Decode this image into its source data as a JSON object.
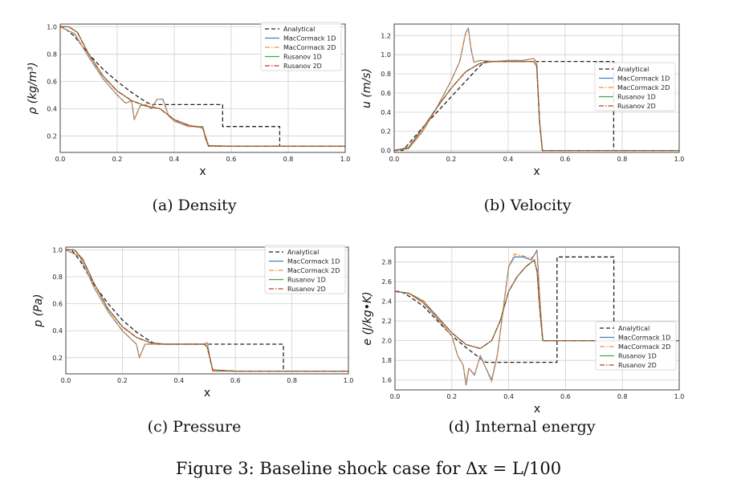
{
  "figure_caption": "Figure 3: Baseline shock case for Δx = L/100",
  "legend_labels": [
    "Analytical",
    "MacCormack 1D",
    "MacCormack 2D",
    "Rusanov 1D",
    "Rusanov 2D"
  ],
  "colors": {
    "analytical": "#222222",
    "maccormack_1d": "#4e7fbf",
    "maccormack_2d": "#f0913a",
    "rusanov_1d": "#4ca24c",
    "rusanov_2d": "#c0392b"
  },
  "chart_data": [
    {
      "type": "line",
      "caption": "(a) Density",
      "xlabel": "x",
      "ylabel": "ρ (kg/m³)",
      "xlim": [
        0,
        1
      ],
      "ylim": [
        0.08,
        1.02
      ],
      "xticks": [
        "0.0",
        "0.2",
        "0.4",
        "0.6",
        "0.8",
        "1.0"
      ],
      "yticks": [
        "0.2",
        "0.4",
        "0.6",
        "0.8",
        "1.0"
      ],
      "grid": true,
      "legend_position": "upper-right",
      "series": [
        {
          "name": "Analytical",
          "x": [
            0,
            0.01,
            0.05,
            0.1,
            0.15,
            0.2,
            0.25,
            0.3,
            0.32,
            0.57,
            0.57,
            0.77,
            0.77,
            1.0
          ],
          "y": [
            1.0,
            1.0,
            0.93,
            0.8,
            0.69,
            0.6,
            0.52,
            0.45,
            0.43,
            0.43,
            0.27,
            0.27,
            0.125,
            0.125
          ]
        },
        {
          "name": "MacCormack 1D",
          "x": [
            0,
            0.05,
            0.1,
            0.15,
            0.2,
            0.23,
            0.25,
            0.26,
            0.28,
            0.3,
            0.32,
            0.34,
            0.36,
            0.38,
            0.4,
            0.45,
            0.5,
            0.51,
            0.52,
            0.6,
            1.0
          ],
          "y": [
            1.0,
            0.95,
            0.78,
            0.62,
            0.5,
            0.44,
            0.46,
            0.32,
            0.42,
            0.43,
            0.4,
            0.47,
            0.47,
            0.35,
            0.31,
            0.27,
            0.27,
            0.18,
            0.125,
            0.125,
            0.125
          ]
        },
        {
          "name": "MacCormack 2D",
          "x": [
            0,
            0.05,
            0.1,
            0.15,
            0.2,
            0.23,
            0.25,
            0.26,
            0.28,
            0.3,
            0.32,
            0.34,
            0.36,
            0.38,
            0.4,
            0.45,
            0.5,
            0.51,
            0.52,
            0.6,
            1.0
          ],
          "y": [
            1.0,
            0.95,
            0.78,
            0.62,
            0.5,
            0.44,
            0.46,
            0.32,
            0.42,
            0.43,
            0.4,
            0.47,
            0.47,
            0.35,
            0.31,
            0.27,
            0.27,
            0.18,
            0.125,
            0.125,
            0.125
          ]
        },
        {
          "name": "Rusanov 1D",
          "x": [
            0,
            0.03,
            0.06,
            0.1,
            0.15,
            0.2,
            0.25,
            0.3,
            0.35,
            0.4,
            0.45,
            0.5,
            0.52,
            0.6,
            1.0
          ],
          "y": [
            1.0,
            1.0,
            0.96,
            0.8,
            0.64,
            0.53,
            0.46,
            0.42,
            0.4,
            0.32,
            0.28,
            0.26,
            0.13,
            0.125,
            0.125
          ]
        },
        {
          "name": "Rusanov 2D",
          "x": [
            0,
            0.03,
            0.06,
            0.1,
            0.15,
            0.2,
            0.25,
            0.3,
            0.35,
            0.4,
            0.45,
            0.5,
            0.52,
            0.6,
            1.0
          ],
          "y": [
            1.0,
            1.0,
            0.96,
            0.8,
            0.64,
            0.53,
            0.46,
            0.42,
            0.4,
            0.32,
            0.28,
            0.26,
            0.13,
            0.125,
            0.125
          ]
        }
      ]
    },
    {
      "type": "line",
      "caption": "(b) Velocity",
      "xlabel": "x",
      "ylabel": "u (m/s)",
      "xlim": [
        0,
        1
      ],
      "ylim": [
        -0.02,
        1.32
      ],
      "xticks": [
        "0.0",
        "0.2",
        "0.4",
        "0.6",
        "0.8",
        "1.0"
      ],
      "yticks": [
        "0.0",
        "0.2",
        "0.4",
        "0.6",
        "0.8",
        "1.0",
        "1.2"
      ],
      "grid": true,
      "legend_position": "center-right",
      "series": [
        {
          "name": "Analytical",
          "x": [
            0,
            0.03,
            0.1,
            0.2,
            0.3,
            0.32,
            0.77,
            0.77,
            1.0
          ],
          "y": [
            0,
            0,
            0.24,
            0.56,
            0.88,
            0.93,
            0.93,
            0,
            0
          ]
        },
        {
          "name": "MacCormack 1D",
          "x": [
            0,
            0.05,
            0.1,
            0.15,
            0.2,
            0.23,
            0.25,
            0.26,
            0.27,
            0.28,
            0.3,
            0.35,
            0.4,
            0.45,
            0.49,
            0.5,
            0.51,
            0.52,
            0.6,
            1.0
          ],
          "y": [
            0,
            0.02,
            0.2,
            0.45,
            0.73,
            0.93,
            1.22,
            1.28,
            1.05,
            0.92,
            0.94,
            0.93,
            0.94,
            0.94,
            0.96,
            0.92,
            0.3,
            0,
            0,
            0
          ]
        },
        {
          "name": "MacCormack 2D",
          "x": [
            0,
            0.05,
            0.1,
            0.15,
            0.2,
            0.23,
            0.25,
            0.26,
            0.27,
            0.28,
            0.3,
            0.35,
            0.4,
            0.45,
            0.49,
            0.5,
            0.51,
            0.52,
            0.6,
            1.0
          ],
          "y": [
            0,
            0.02,
            0.2,
            0.45,
            0.73,
            0.93,
            1.22,
            1.28,
            1.05,
            0.92,
            0.94,
            0.93,
            0.94,
            0.94,
            0.96,
            0.92,
            0.3,
            0,
            0,
            0
          ]
        },
        {
          "name": "Rusanov 1D",
          "x": [
            0,
            0.05,
            0.1,
            0.15,
            0.2,
            0.25,
            0.3,
            0.35,
            0.4,
            0.45,
            0.49,
            0.5,
            0.51,
            0.52,
            0.6,
            1.0
          ],
          "y": [
            0,
            0.03,
            0.23,
            0.45,
            0.65,
            0.82,
            0.91,
            0.93,
            0.93,
            0.93,
            0.93,
            0.88,
            0.3,
            0,
            0,
            0
          ]
        },
        {
          "name": "Rusanov 2D",
          "x": [
            0,
            0.05,
            0.1,
            0.15,
            0.2,
            0.25,
            0.3,
            0.35,
            0.4,
            0.45,
            0.49,
            0.5,
            0.51,
            0.52,
            0.6,
            1.0
          ],
          "y": [
            0,
            0.03,
            0.23,
            0.45,
            0.65,
            0.82,
            0.91,
            0.93,
            0.93,
            0.93,
            0.93,
            0.88,
            0.3,
            0,
            0,
            0
          ]
        }
      ]
    },
    {
      "type": "line",
      "caption": "(c) Pressure",
      "xlabel": "x",
      "ylabel": "p (Pa)",
      "xlim": [
        0,
        1
      ],
      "ylim": [
        0.08,
        1.02
      ],
      "xticks": [
        "0.0",
        "0.2",
        "0.4",
        "0.6",
        "0.8",
        "1.0"
      ],
      "yticks": [
        "0.2",
        "0.4",
        "0.6",
        "0.8",
        "1.0"
      ],
      "grid": true,
      "legend_position": "upper-right",
      "series": [
        {
          "name": "Analytical",
          "x": [
            0,
            0.02,
            0.05,
            0.1,
            0.15,
            0.2,
            0.25,
            0.3,
            0.32,
            0.77,
            0.77,
            1.0
          ],
          "y": [
            1.0,
            1.0,
            0.92,
            0.74,
            0.6,
            0.48,
            0.39,
            0.32,
            0.3,
            0.3,
            0.1,
            0.1
          ]
        },
        {
          "name": "MacCormack 1D",
          "x": [
            0,
            0.05,
            0.1,
            0.15,
            0.2,
            0.23,
            0.25,
            0.26,
            0.28,
            0.3,
            0.35,
            0.4,
            0.45,
            0.49,
            0.5,
            0.51,
            0.52,
            0.6,
            1.0
          ],
          "y": [
            1.0,
            0.95,
            0.72,
            0.54,
            0.4,
            0.34,
            0.3,
            0.2,
            0.3,
            0.3,
            0.3,
            0.3,
            0.3,
            0.3,
            0.31,
            0.2,
            0.1,
            0.1,
            0.1
          ]
        },
        {
          "name": "MacCormack 2D",
          "x": [
            0,
            0.05,
            0.1,
            0.15,
            0.2,
            0.23,
            0.25,
            0.26,
            0.28,
            0.3,
            0.35,
            0.4,
            0.45,
            0.49,
            0.5,
            0.51,
            0.52,
            0.6,
            1.0
          ],
          "y": [
            1.0,
            0.95,
            0.72,
            0.54,
            0.4,
            0.34,
            0.3,
            0.2,
            0.3,
            0.3,
            0.3,
            0.3,
            0.3,
            0.3,
            0.31,
            0.2,
            0.1,
            0.1,
            0.1
          ]
        },
        {
          "name": "Rusanov 1D",
          "x": [
            0,
            0.03,
            0.06,
            0.1,
            0.15,
            0.2,
            0.25,
            0.3,
            0.35,
            0.4,
            0.45,
            0.49,
            0.5,
            0.52,
            0.6,
            1.0
          ],
          "y": [
            1.0,
            1.0,
            0.93,
            0.75,
            0.56,
            0.43,
            0.35,
            0.31,
            0.3,
            0.3,
            0.3,
            0.3,
            0.28,
            0.11,
            0.1,
            0.1
          ]
        },
        {
          "name": "Rusanov 2D",
          "x": [
            0,
            0.03,
            0.06,
            0.1,
            0.15,
            0.2,
            0.25,
            0.3,
            0.35,
            0.4,
            0.45,
            0.49,
            0.5,
            0.52,
            0.6,
            1.0
          ],
          "y": [
            1.0,
            1.0,
            0.93,
            0.75,
            0.56,
            0.43,
            0.35,
            0.31,
            0.3,
            0.3,
            0.3,
            0.3,
            0.28,
            0.11,
            0.1,
            0.1
          ]
        }
      ]
    },
    {
      "type": "line",
      "caption": "(d) Internal energy",
      "xlabel": "x",
      "ylabel": "e (J/kg•K)",
      "xlim": [
        0,
        1
      ],
      "ylim": [
        1.5,
        2.95
      ],
      "xticks": [
        "0.0",
        "0.2",
        "0.4",
        "0.6",
        "0.8",
        "1.0"
      ],
      "yticks": [
        "1.6",
        "1.8",
        "2.0",
        "2.2",
        "2.4",
        "2.6",
        "2.8"
      ],
      "grid": true,
      "legend_position": "lower-right",
      "series": [
        {
          "name": "Analytical",
          "x": [
            0,
            0.02,
            0.05,
            0.1,
            0.15,
            0.2,
            0.25,
            0.3,
            0.32,
            0.57,
            0.57,
            0.77,
            0.77,
            1.0
          ],
          "y": [
            2.5,
            2.5,
            2.45,
            2.35,
            2.2,
            2.05,
            1.93,
            1.82,
            1.78,
            1.78,
            2.85,
            2.85,
            2.0,
            2.0
          ]
        },
        {
          "name": "MacCormack 1D",
          "x": [
            0,
            0.05,
            0.1,
            0.15,
            0.2,
            0.22,
            0.24,
            0.25,
            0.26,
            0.28,
            0.3,
            0.32,
            0.34,
            0.36,
            0.38,
            0.4,
            0.42,
            0.45,
            0.48,
            0.5,
            0.51,
            0.52,
            0.6,
            1.0
          ],
          "y": [
            2.5,
            2.48,
            2.38,
            2.22,
            2.05,
            1.85,
            1.75,
            1.55,
            1.72,
            1.65,
            1.85,
            1.72,
            1.6,
            1.85,
            2.3,
            2.75,
            2.85,
            2.85,
            2.82,
            2.92,
            2.4,
            2.0,
            2.0,
            2.0
          ]
        },
        {
          "name": "MacCormack 2D",
          "x": [
            0,
            0.05,
            0.1,
            0.15,
            0.2,
            0.22,
            0.24,
            0.25,
            0.26,
            0.28,
            0.3,
            0.32,
            0.34,
            0.36,
            0.38,
            0.4,
            0.42,
            0.45,
            0.48,
            0.5,
            0.51,
            0.52,
            0.6,
            1.0
          ],
          "y": [
            2.5,
            2.48,
            2.38,
            2.22,
            2.05,
            1.85,
            1.75,
            1.57,
            1.72,
            1.66,
            1.84,
            1.72,
            1.58,
            1.85,
            2.3,
            2.75,
            2.88,
            2.86,
            2.84,
            2.9,
            2.4,
            2.0,
            2.0,
            2.0
          ]
        },
        {
          "name": "Rusanov 1D",
          "x": [
            0,
            0.05,
            0.1,
            0.15,
            0.2,
            0.25,
            0.3,
            0.34,
            0.37,
            0.4,
            0.43,
            0.46,
            0.49,
            0.5,
            0.51,
            0.52,
            0.6,
            1.0
          ],
          "y": [
            2.5,
            2.48,
            2.4,
            2.24,
            2.08,
            1.96,
            1.92,
            2.0,
            2.2,
            2.5,
            2.65,
            2.75,
            2.82,
            2.7,
            2.3,
            2.0,
            2.0,
            2.0
          ]
        },
        {
          "name": "Rusanov 2D",
          "x": [
            0,
            0.05,
            0.1,
            0.15,
            0.2,
            0.25,
            0.3,
            0.34,
            0.37,
            0.4,
            0.43,
            0.46,
            0.49,
            0.5,
            0.51,
            0.52,
            0.6,
            1.0
          ],
          "y": [
            2.5,
            2.48,
            2.4,
            2.24,
            2.08,
            1.96,
            1.92,
            2.0,
            2.2,
            2.5,
            2.65,
            2.75,
            2.82,
            2.7,
            2.3,
            2.0,
            2.0,
            2.0
          ]
        }
      ]
    }
  ]
}
